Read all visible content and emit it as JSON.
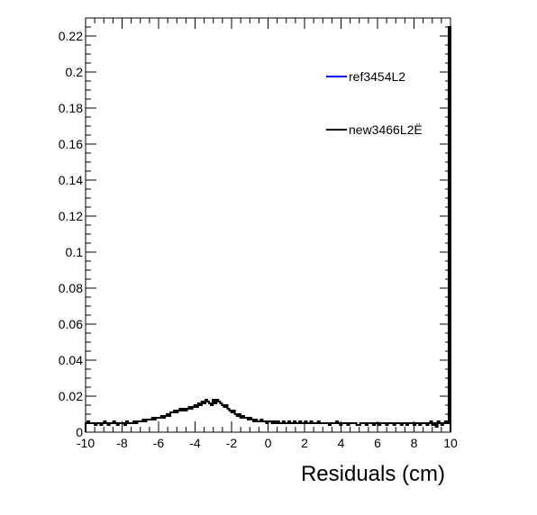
{
  "chart_data": {
    "type": "line",
    "title": "",
    "xlabel": "Residuals (cm)",
    "ylabel": "",
    "xlim": [
      -10,
      10
    ],
    "ylim": [
      0,
      0.23
    ],
    "x_ticks": [
      "-10",
      "-8",
      "-6",
      "-4",
      "-2",
      "0",
      "2",
      "4",
      "6",
      "8",
      "10"
    ],
    "y_ticks": [
      "0",
      "0.02",
      "0.04",
      "0.06",
      "0.08",
      "0.1",
      "0.12",
      "0.14",
      "0.16",
      "0.18",
      "0.2",
      "0.22"
    ],
    "grid": false,
    "legend_position": "top-right",
    "series": [
      {
        "name": "ref3454L2",
        "color": "#0000ff",
        "bin_edges": [
          -10,
          10
        ],
        "values": []
      },
      {
        "name": "new3466L2Ë",
        "color": "#000000",
        "bin_edges": [
          -10,
          10
        ],
        "values": [
          0.005,
          0.006,
          0.005,
          0.005,
          0.005,
          0.004,
          0.005,
          0.005,
          0.004,
          0.005,
          0.006,
          0.005,
          0.004,
          0.005,
          0.005,
          0.006,
          0.005,
          0.004,
          0.005,
          0.005,
          0.005,
          0.004,
          0.006,
          0.005,
          0.005,
          0.005,
          0.006,
          0.005,
          0.006,
          0.006,
          0.006,
          0.007,
          0.006,
          0.007,
          0.007,
          0.007,
          0.008,
          0.007,
          0.008,
          0.008,
          0.008,
          0.009,
          0.008,
          0.009,
          0.01,
          0.009,
          0.011,
          0.011,
          0.012,
          0.011,
          0.012,
          0.013,
          0.012,
          0.013,
          0.012,
          0.013,
          0.014,
          0.013,
          0.014,
          0.015,
          0.014,
          0.016,
          0.015,
          0.017,
          0.016,
          0.018,
          0.017,
          0.016,
          0.015,
          0.018,
          0.016,
          0.018,
          0.017,
          0.016,
          0.015,
          0.014,
          0.015,
          0.013,
          0.012,
          0.011,
          0.012,
          0.01,
          0.009,
          0.01,
          0.008,
          0.009,
          0.008,
          0.008,
          0.007,
          0.008,
          0.007,
          0.006,
          0.007,
          0.006,
          0.006,
          0.007,
          0.006,
          0.006,
          0.005,
          0.006,
          0.006,
          0.005,
          0.006,
          0.005,
          0.006,
          0.005,
          0.005,
          0.006,
          0.005,
          0.005,
          0.006,
          0.005,
          0.005,
          0.006,
          0.005,
          0.005,
          0.006,
          0.005,
          0.005,
          0.006,
          0.005,
          0.005,
          0.006,
          0.005,
          0.005,
          0.005,
          0.006,
          0.005,
          0.005,
          0.005,
          0.005,
          0.005,
          0.004,
          0.005,
          0.005,
          0.005,
          0.006,
          0.005,
          0.004,
          0.005,
          0.005,
          0.005,
          0.004,
          0.005,
          0.005,
          0.005,
          0.005,
          0.004,
          0.004,
          0.005,
          0.005,
          0.005,
          0.004,
          0.005,
          0.005,
          0.005,
          0.004,
          0.005,
          0.005,
          0.004,
          0.005,
          0.005,
          0.005,
          0.004,
          0.005,
          0.005,
          0.005,
          0.004,
          0.005,
          0.005,
          0.005,
          0.004,
          0.005,
          0.005,
          0.004,
          0.005,
          0.005,
          0.005,
          0.004,
          0.005,
          0.005,
          0.004,
          0.005,
          0.005,
          0.005,
          0.004,
          0.005,
          0.006,
          0.004,
          0.005,
          0.003,
          0.006,
          0.005,
          0.004,
          0.005,
          0.006,
          0.005,
          0.225
        ]
      }
    ]
  }
}
